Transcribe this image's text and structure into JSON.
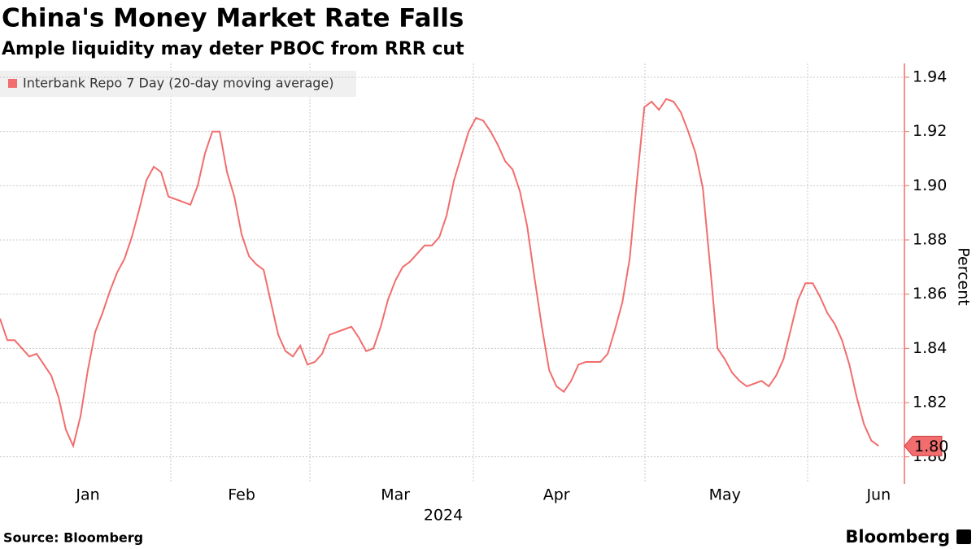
{
  "chart_data": {
    "type": "line",
    "title": "China's Money Market Rate Falls",
    "subtitle": "Ample liquidity may deter PBOC from RRR cut",
    "xlabel": "2024",
    "ylabel": "Percent",
    "source": "Source: Bloomberg",
    "logo": "Bloomberg",
    "categories": [
      null,
      null,
      null,
      null,
      null,
      null,
      null,
      null,
      null,
      null,
      null,
      null,
      "Jan",
      null,
      null,
      null,
      null,
      null,
      null,
      null,
      null,
      null,
      null,
      null,
      null,
      null,
      null,
      null,
      null,
      null,
      null,
      null,
      null,
      "Feb",
      null,
      null,
      null,
      null,
      null,
      null,
      null,
      null,
      null,
      null,
      null,
      null,
      null,
      null,
      null,
      null,
      null,
      null,
      null,
      null,
      "Mar",
      null,
      null,
      null,
      null,
      null,
      null,
      null,
      null,
      null,
      null,
      null,
      null,
      null,
      null,
      null,
      null,
      null,
      null,
      null,
      null,
      null,
      "Apr",
      null,
      null,
      null,
      null,
      null,
      null,
      null,
      null,
      null,
      null,
      null,
      null,
      null,
      null,
      null,
      null,
      null,
      null,
      null,
      null,
      null,
      null,
      "May",
      null,
      null,
      null,
      null,
      null,
      null,
      null,
      null,
      null,
      null,
      null,
      null,
      null,
      null,
      null,
      null,
      null,
      null,
      null,
      null,
      "Jun"
    ],
    "series": [
      {
        "name": "Interbank Repo 7 Day (20-day moving average)",
        "color": "#f26d6d",
        "values": [
          1.851,
          1.843,
          1.843,
          1.84,
          1.837,
          1.838,
          1.834,
          1.83,
          1.822,
          1.81,
          1.804,
          1.815,
          1.832,
          1.846,
          1.853,
          1.861,
          1.868,
          1.873,
          1.881,
          1.891,
          1.902,
          1.907,
          1.905,
          1.896,
          1.895,
          1.894,
          1.893,
          1.9,
          1.912,
          1.92,
          1.92,
          1.905,
          1.896,
          1.882,
          1.874,
          1.871,
          1.869,
          1.857,
          1.845,
          1.839,
          1.837,
          1.841,
          1.834,
          1.835,
          1.838,
          1.845,
          1.846,
          1.847,
          1.848,
          1.844,
          1.839,
          1.84,
          1.848,
          1.858,
          1.865,
          1.87,
          1.872,
          1.875,
          1.878,
          1.878,
          1.881,
          1.889,
          1.902,
          1.911,
          1.92,
          1.925,
          1.924,
          1.92,
          1.915,
          1.909,
          1.906,
          1.898,
          1.885,
          1.866,
          1.848,
          1.832,
          1.826,
          1.824,
          1.828,
          1.834,
          1.835,
          1.835,
          1.835,
          1.838,
          1.847,
          1.857,
          1.873,
          1.902,
          1.929,
          1.931,
          1.928,
          1.932,
          1.931,
          1.927,
          1.92,
          1.912,
          1.899,
          1.87,
          1.84,
          1.836,
          1.831,
          1.828,
          1.826,
          1.827,
          1.828,
          1.826,
          1.83,
          1.836,
          1.847,
          1.858,
          1.864,
          1.864,
          1.859,
          1.853,
          1.849,
          1.843,
          1.834,
          1.822,
          1.812,
          1.806,
          1.804
        ],
        "value_labels": [
          null,
          null,
          null,
          null,
          null,
          null,
          null,
          null,
          null,
          null,
          null,
          null,
          null,
          null,
          null,
          null,
          null,
          null,
          null,
          null,
          null,
          null,
          null,
          null,
          null,
          null,
          null,
          null,
          null,
          null,
          null,
          null,
          null,
          null,
          null,
          null,
          null,
          null,
          null,
          null,
          null,
          null,
          null,
          null,
          null,
          null,
          null,
          null,
          null,
          null,
          null,
          null,
          null,
          null,
          null,
          null,
          null,
          null,
          null,
          null,
          null,
          null,
          null,
          null,
          null,
          null,
          null,
          null,
          null,
          null,
          null,
          null,
          null,
          null,
          null,
          null,
          null,
          null,
          null,
          null,
          null,
          null,
          null,
          null,
          null,
          null,
          null,
          null,
          null,
          null,
          null,
          null,
          null,
          null,
          null,
          null,
          null,
          null,
          null,
          null,
          null,
          null,
          null,
          null,
          null,
          null,
          null,
          null,
          null,
          null,
          null,
          null,
          null,
          null,
          null,
          null,
          null,
          null,
          null,
          null,
          "1.80"
        ]
      }
    ],
    "ylim": [
      1.79,
      1.946
    ],
    "yticks": [
      {
        "value": 1.8,
        "label": "1.80"
      },
      1.82,
      1.84,
      1.86,
      1.88,
      {
        "value": 1.9,
        "label": "1.90"
      },
      1.92,
      1.94
    ],
    "grid": true,
    "legend": "top-left"
  }
}
